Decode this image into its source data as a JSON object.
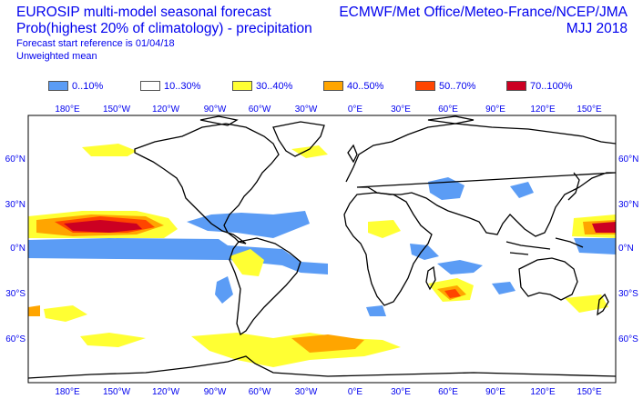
{
  "header": {
    "left_line1": "EUROSIP multi-model seasonal forecast",
    "left_line2": "Prob(highest 20% of climatology) - precipitation",
    "left_line3": "Forecast start reference is 01/04/18",
    "left_line4": "Unweighted mean",
    "right_line1": "ECMWF/Met Office/Meteo-France/NCEP/JMA",
    "right_line2": "MJJ 2018"
  },
  "legend": [
    {
      "label": "0..10%",
      "color": "#5b9cf5"
    },
    {
      "label": "10..30%",
      "color": "#ffffff"
    },
    {
      "label": "30..40%",
      "color": "#ffff33"
    },
    {
      "label": "40..50%",
      "color": "#ffa500"
    },
    {
      "label": "50..70%",
      "color": "#ff4500"
    },
    {
      "label": "70..100%",
      "color": "#cc0022"
    }
  ],
  "map": {
    "lon_labels": [
      "180°E",
      "150°W",
      "120°W",
      "90°W",
      "60°W",
      "30°W",
      "0°E",
      "30°E",
      "60°E",
      "90°E",
      "120°E",
      "150°E"
    ],
    "lat_labels": [
      "60°N",
      "30°N",
      "0°N",
      "30°S",
      "60°S"
    ]
  }
}
